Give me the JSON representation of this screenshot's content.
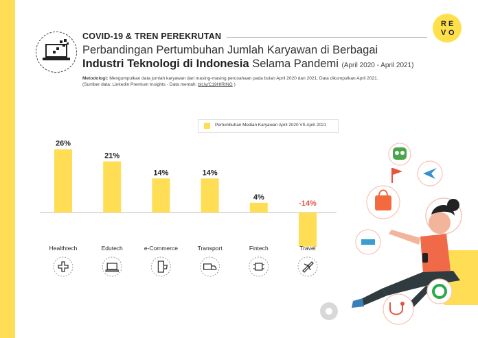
{
  "header": {
    "section_title": "COVID-19 & TREN PEREKRUTAN",
    "title_line1": "Perbandingan Pertumbuhan Jumlah Karyawan di Berbagai",
    "title_line2_bold": "Industri Teknologi di Indonesia",
    "title_line2_rest": " Selama Pandemi ",
    "title_period": "(April 2020 - April 2021)",
    "methodology_label": "Metodologi:",
    "methodology_text": " Mengumpulkan data jumlah karyawan dari masing-masing perusahaan pada bulan April 2020 dan 2021. Data dikumpulkan April 2021.",
    "source_text": "(Sumber data: Linkedin Premium Insights - Data mentah: ",
    "source_link": "bit.ly/C19HIRING",
    "source_close": " )"
  },
  "logo": {
    "letters": [
      "R",
      "E",
      "V",
      "O"
    ]
  },
  "colors": {
    "left_bar": "#ffdd55",
    "bar": "#ffdd55",
    "negative_label": "#e8533f",
    "logo_bg": "#ffe04a"
  },
  "chart_data": {
    "type": "bar",
    "categories": [
      "Healthtech",
      "Edutech",
      "e-Commerce",
      "Transport",
      "Fintech",
      "Travel"
    ],
    "series": [
      {
        "name": "Pertumbuhan Median Karyawan April 2020 VS April 2021",
        "values": [
          26,
          21,
          14,
          14,
          4,
          -14
        ]
      }
    ],
    "value_labels": [
      "26%",
      "21%",
      "14%",
      "14%",
      "4%",
      "-14%"
    ],
    "unit": "%",
    "ylim": [
      -14,
      26
    ],
    "grid": false,
    "legend": "top-right"
  },
  "category_icons": [
    "medical-cross-icon",
    "laptop-book-icon",
    "phone-cart-icon",
    "truck-icon",
    "chip-icon",
    "airplane-icon"
  ]
}
